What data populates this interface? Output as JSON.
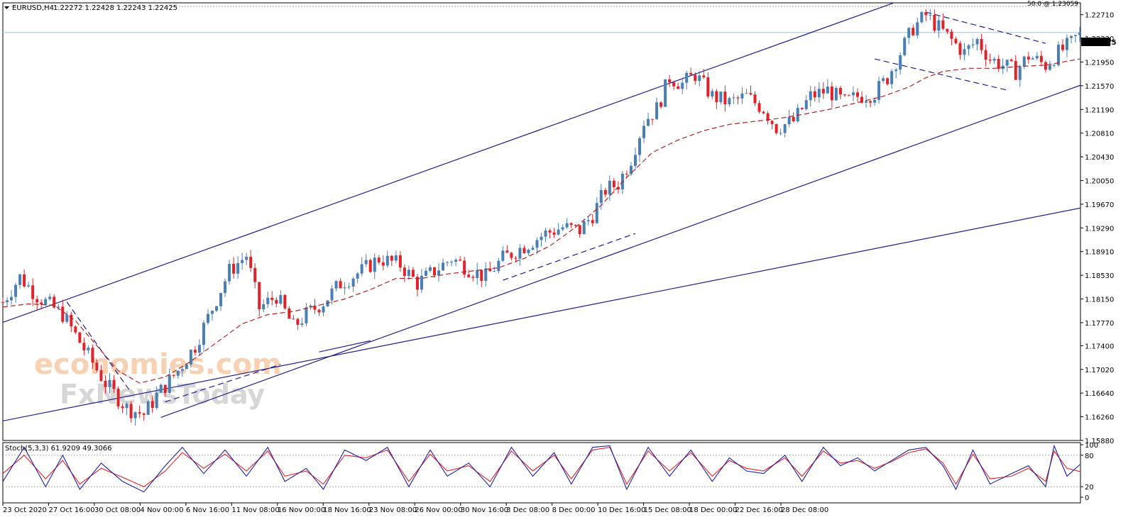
{
  "chart_data": [
    {
      "type": "candlestick",
      "symbol_header": "EURUSD,H4",
      "ohlc_header": "1.22272 1.22428 1.22243 1.22425",
      "fib_label": "50.0 @ 1.23059",
      "current_price": "1.22425",
      "ylim": [
        1.1588,
        1.229
      ],
      "y_ticks": [
        "1.22710",
        "1.22330",
        "1.21950",
        "1.21570",
        "1.21190",
        "1.20810",
        "1.20430",
        "1.20050",
        "1.19670",
        "1.19290",
        "1.18910",
        "1.18530",
        "1.18150",
        "1.17770",
        "1.17400",
        "1.17020",
        "1.16640",
        "1.16260",
        "1.15880"
      ],
      "x_ticks": [
        "23 Oct 2020",
        "27 Oct 16:00",
        "30 Oct 08:00",
        "4 Nov 00:00",
        "6 Nov 16:00",
        "11 Nov 08:00",
        "16 Nov 00:00",
        "18 Nov 16:00",
        "23 Nov 08:00",
        "26 Nov 00:00",
        "30 Nov 16:00",
        "3 Dec 08:00",
        "8 Dec 00:00",
        "10 Dec 16:00",
        "15 Dec 08:00",
        "18 Dec 00:00",
        "22 Dec 16:00",
        "28 Dec 08:00"
      ],
      "colors": {
        "up": "#4a7fb5",
        "down": "#e0232a",
        "ma": "#b22222",
        "trendline": "#1f1f8f",
        "hline": "#87cefa"
      },
      "close_path": [
        [
          0,
          1.181
        ],
        [
          4,
          1.185
        ],
        [
          8,
          1.182
        ],
        [
          14,
          1.179
        ],
        [
          19,
          1.1735
        ],
        [
          24,
          1.168
        ],
        [
          29,
          1.164
        ],
        [
          33,
          1.163
        ],
        [
          36,
          1.166
        ],
        [
          41,
          1.17
        ],
        [
          45,
          1.174
        ],
        [
          49,
          1.18
        ],
        [
          53,
          1.186
        ],
        [
          57,
          1.1885
        ],
        [
          60,
          1.18
        ],
        [
          64,
          1.182
        ],
        [
          68,
          1.177
        ],
        [
          71,
          1.179
        ],
        [
          75,
          1.181
        ],
        [
          79,
          1.184
        ],
        [
          84,
          1.186
        ],
        [
          88,
          1.188
        ],
        [
          93,
          1.187
        ],
        [
          97,
          1.184
        ],
        [
          101,
          1.186
        ],
        [
          105,
          1.188
        ],
        [
          110,
          1.186
        ],
        [
          113,
          1.185
        ],
        [
          117,
          1.188
        ],
        [
          122,
          1.19
        ],
        [
          127,
          1.192
        ],
        [
          131,
          1.193
        ],
        [
          135,
          1.1925
        ],
        [
          138,
          1.195
        ],
        [
          141,
          1.199
        ],
        [
          144,
          1.2
        ],
        [
          147,
          1.204
        ],
        [
          150,
          1.21
        ],
        [
          153,
          1.212
        ],
        [
          156,
          1.217
        ],
        [
          159,
          1.216
        ],
        [
          162,
          1.2175
        ],
        [
          166,
          1.214
        ],
        [
          170,
          1.213
        ],
        [
          174,
          1.214
        ],
        [
          178,
          1.212
        ],
        [
          181,
          1.209
        ],
        [
          185,
          1.21
        ],
        [
          189,
          1.214
        ],
        [
          193,
          1.215
        ],
        [
          197,
          1.213
        ],
        [
          200,
          1.214
        ],
        [
          204,
          1.2145
        ],
        [
          207,
          1.217
        ],
        [
          210,
          1.221
        ],
        [
          213,
          1.225
        ],
        [
          216,
          1.227
        ],
        [
          219,
          1.225
        ],
        [
          222,
          1.223
        ],
        [
          225,
          1.221
        ],
        [
          228,
          1.223
        ],
        [
          231,
          1.22
        ],
        [
          234,
          1.219
        ],
        [
          237,
          1.218
        ],
        [
          240,
          1.2205
        ],
        [
          244,
          1.219
        ],
        [
          247,
          1.221
        ],
        [
          250,
          1.2225
        ],
        [
          252,
          1.2242
        ]
      ],
      "ma_path": [
        [
          0,
          1.1802
        ],
        [
          6,
          1.1807
        ],
        [
          12,
          1.1805
        ],
        [
          17,
          1.178
        ],
        [
          22,
          1.174
        ],
        [
          27,
          1.17
        ],
        [
          32,
          1.168
        ],
        [
          38,
          1.169
        ],
        [
          44,
          1.1715
        ],
        [
          50,
          1.1745
        ],
        [
          56,
          1.1775
        ],
        [
          62,
          1.179
        ],
        [
          68,
          1.1795
        ],
        [
          74,
          1.1805
        ],
        [
          80,
          1.1815
        ],
        [
          86,
          1.183
        ],
        [
          92,
          1.1848
        ],
        [
          98,
          1.1848
        ],
        [
          104,
          1.1855
        ],
        [
          110,
          1.186
        ],
        [
          116,
          1.1865
        ],
        [
          122,
          1.188
        ],
        [
          128,
          1.19
        ],
        [
          134,
          1.193
        ],
        [
          140,
          1.1965
        ],
        [
          146,
          1.201
        ],
        [
          152,
          1.205
        ],
        [
          158,
          1.207
        ],
        [
          164,
          1.2085
        ],
        [
          170,
          1.2095
        ],
        [
          176,
          1.21
        ],
        [
          182,
          1.2105
        ],
        [
          188,
          1.2112
        ],
        [
          194,
          1.212
        ],
        [
          200,
          1.213
        ],
        [
          206,
          1.214
        ],
        [
          212,
          1.2155
        ],
        [
          216,
          1.217
        ],
        [
          220,
          1.218
        ],
        [
          226,
          1.2185
        ],
        [
          232,
          1.2185
        ],
        [
          238,
          1.2188
        ],
        [
          244,
          1.219
        ],
        [
          252,
          1.22
        ]
      ],
      "trendlines": [
        {
          "x1": -1,
          "y1": 1.1775,
          "x2": 215,
          "y2": 1.2306
        },
        {
          "x1": 37,
          "y1": 1.1625,
          "x2": 312,
          "y2": 1.2306
        },
        {
          "x1": -1,
          "y1": 1.1618,
          "x2": 346,
          "y2": 1.2088
        },
        {
          "x1": 74,
          "y1": 1.173,
          "x2": 86,
          "y2": 1.1748
        }
      ],
      "dashed_trendlines": [
        {
          "x1": 15,
          "y1": 1.181,
          "x2": 30,
          "y2": 1.1665
        },
        {
          "x1": 38,
          "y1": 1.165,
          "x2": 65,
          "y2": 1.171
        },
        {
          "x1": 117,
          "y1": 1.1845,
          "x2": 148,
          "y2": 1.192
        },
        {
          "x1": 204,
          "y1": 1.22,
          "x2": 235,
          "y2": 1.215
        },
        {
          "x1": 216,
          "y1": 1.2275,
          "x2": 244,
          "y2": 1.2225
        }
      ]
    },
    {
      "type": "line",
      "name": "Stoch(5,3,3) 61.9209 49.3066",
      "ylim": [
        0,
        100
      ],
      "y_ticks": [
        "100",
        "80",
        "20",
        "0"
      ],
      "levels": [
        80,
        20
      ],
      "main_path": [
        [
          0,
          30
        ],
        [
          5,
          95
        ],
        [
          10,
          20
        ],
        [
          14,
          80
        ],
        [
          18,
          15
        ],
        [
          23,
          65
        ],
        [
          28,
          30
        ],
        [
          33,
          10
        ],
        [
          38,
          60
        ],
        [
          42,
          95
        ],
        [
          47,
          45
        ],
        [
          52,
          90
        ],
        [
          57,
          40
        ],
        [
          62,
          95
        ],
        [
          66,
          30
        ],
        [
          71,
          55
        ],
        [
          75,
          15
        ],
        [
          80,
          90
        ],
        [
          85,
          70
        ],
        [
          90,
          95
        ],
        [
          95,
          20
        ],
        [
          100,
          90
        ],
        [
          104,
          40
        ],
        [
          109,
          65
        ],
        [
          114,
          20
        ],
        [
          119,
          95
        ],
        [
          124,
          40
        ],
        [
          129,
          85
        ],
        [
          133,
          25
        ],
        [
          138,
          95
        ],
        [
          142,
          98
        ],
        [
          146,
          15
        ],
        [
          151,
          95
        ],
        [
          156,
          40
        ],
        [
          161,
          90
        ],
        [
          166,
          30
        ],
        [
          170,
          75
        ],
        [
          174,
          50
        ],
        [
          178,
          45
        ],
        [
          183,
          80
        ],
        [
          187,
          30
        ],
        [
          192,
          95
        ],
        [
          196,
          60
        ],
        [
          200,
          75
        ],
        [
          204,
          50
        ],
        [
          208,
          70
        ],
        [
          212,
          90
        ],
        [
          216,
          95
        ],
        [
          220,
          60
        ],
        [
          223,
          15
        ],
        [
          227,
          90
        ],
        [
          231,
          25
        ],
        [
          236,
          45
        ],
        [
          240,
          60
        ],
        [
          244,
          20
        ],
        [
          246,
          98
        ],
        [
          249,
          40
        ],
        [
          252,
          62
        ]
      ],
      "signal_path": [
        [
          0,
          45
        ],
        [
          5,
          80
        ],
        [
          10,
          35
        ],
        [
          14,
          70
        ],
        [
          18,
          25
        ],
        [
          23,
          55
        ],
        [
          28,
          38
        ],
        [
          33,
          20
        ],
        [
          38,
          50
        ],
        [
          42,
          85
        ],
        [
          47,
          55
        ],
        [
          52,
          82
        ],
        [
          57,
          50
        ],
        [
          62,
          88
        ],
        [
          66,
          40
        ],
        [
          71,
          50
        ],
        [
          75,
          25
        ],
        [
          80,
          80
        ],
        [
          85,
          75
        ],
        [
          90,
          90
        ],
        [
          95,
          30
        ],
        [
          100,
          82
        ],
        [
          104,
          50
        ],
        [
          109,
          60
        ],
        [
          114,
          30
        ],
        [
          119,
          88
        ],
        [
          124,
          50
        ],
        [
          129,
          80
        ],
        [
          133,
          35
        ],
        [
          138,
          90
        ],
        [
          142,
          95
        ],
        [
          146,
          25
        ],
        [
          151,
          88
        ],
        [
          156,
          50
        ],
        [
          161,
          85
        ],
        [
          166,
          40
        ],
        [
          170,
          70
        ],
        [
          174,
          55
        ],
        [
          178,
          50
        ],
        [
          183,
          75
        ],
        [
          187,
          40
        ],
        [
          192,
          88
        ],
        [
          196,
          65
        ],
        [
          200,
          70
        ],
        [
          204,
          55
        ],
        [
          208,
          68
        ],
        [
          212,
          85
        ],
        [
          216,
          92
        ],
        [
          220,
          65
        ],
        [
          223,
          25
        ],
        [
          227,
          82
        ],
        [
          231,
          35
        ],
        [
          236,
          40
        ],
        [
          240,
          55
        ],
        [
          244,
          30
        ],
        [
          246,
          88
        ],
        [
          249,
          55
        ],
        [
          252,
          49
        ]
      ]
    }
  ],
  "watermark": {
    "line1": "economies.com",
    "line2": "FxNewsToday"
  }
}
